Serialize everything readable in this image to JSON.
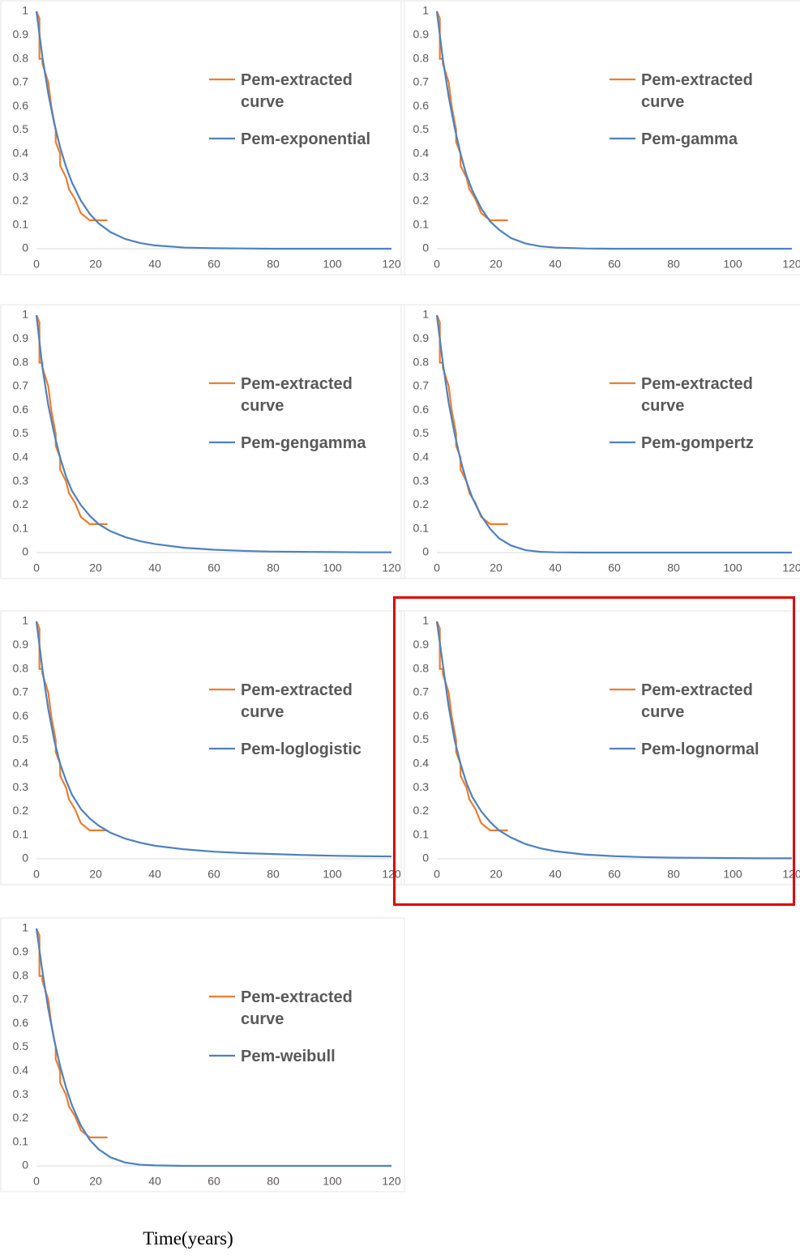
{
  "chart_data": [
    {
      "type": "line",
      "xlim": [
        0,
        120
      ],
      "ylim": [
        0,
        1
      ],
      "xticks": [
        0,
        20,
        40,
        60,
        80,
        100,
        120
      ],
      "yticks": [
        0,
        0.1,
        0.2,
        0.3,
        0.4,
        0.5,
        0.6,
        0.7,
        0.8,
        0.9,
        1
      ],
      "legend": "right",
      "series": [
        {
          "name": "Pem-extracted curve",
          "color": "#ed7d31",
          "x": [
            0,
            1,
            1,
            2,
            2,
            4,
            4,
            5,
            5,
            6.5,
            6.5,
            8,
            8,
            10,
            10,
            11,
            11,
            13,
            13,
            15,
            15,
            18,
            18,
            24
          ],
          "values": [
            1,
            0.97,
            0.8,
            0.8,
            0.78,
            0.7,
            0.7,
            0.6,
            0.6,
            0.5,
            0.45,
            0.4,
            0.35,
            0.3,
            0.3,
            0.25,
            0.25,
            0.21,
            0.21,
            0.15,
            0.15,
            0.12,
            0.12,
            0.12
          ]
        },
        {
          "name": "Pem-exponential",
          "color": "#4f81bd",
          "x": [
            0,
            2,
            4,
            6,
            8,
            10,
            12,
            15,
            18,
            21,
            25,
            30,
            35,
            40,
            50,
            60,
            70,
            80,
            90,
            100,
            110,
            120
          ],
          "values": [
            1,
            0.808,
            0.653,
            0.528,
            0.427,
            0.345,
            0.279,
            0.203,
            0.147,
            0.107,
            0.07,
            0.041,
            0.024,
            0.014,
            0.005,
            0.002,
            0.001,
            0,
            0,
            0,
            0,
            0
          ]
        }
      ]
    },
    {
      "type": "line",
      "xlim": [
        0,
        120
      ],
      "ylim": [
        0,
        1
      ],
      "xticks": [
        0,
        20,
        40,
        60,
        80,
        100,
        120
      ],
      "yticks": [
        0,
        0.1,
        0.2,
        0.3,
        0.4,
        0.5,
        0.6,
        0.7,
        0.8,
        0.9,
        1
      ],
      "legend": "right",
      "series": [
        {
          "name": "Pem-extracted curve",
          "color": "#ed7d31",
          "x": [
            0,
            1,
            1,
            2,
            2,
            4,
            4,
            5,
            5,
            6.5,
            6.5,
            8,
            8,
            10,
            10,
            11,
            11,
            13,
            13,
            15,
            15,
            18,
            18,
            24
          ],
          "values": [
            1,
            0.97,
            0.8,
            0.8,
            0.78,
            0.7,
            0.7,
            0.6,
            0.6,
            0.5,
            0.45,
            0.4,
            0.35,
            0.3,
            0.3,
            0.25,
            0.25,
            0.21,
            0.21,
            0.15,
            0.15,
            0.12,
            0.12,
            0.12
          ]
        },
        {
          "name": "Pem-gamma",
          "color": "#4f81bd",
          "x": [
            0,
            2,
            4,
            6,
            8,
            10,
            12,
            15,
            18,
            21,
            25,
            30,
            35,
            40,
            50,
            60,
            70,
            80,
            90,
            100,
            110,
            120
          ],
          "values": [
            1,
            0.8,
            0.64,
            0.51,
            0.4,
            0.31,
            0.245,
            0.17,
            0.115,
            0.08,
            0.045,
            0.022,
            0.01,
            0.005,
            0.001,
            0,
            0,
            0,
            0,
            0,
            0,
            0
          ]
        }
      ]
    },
    {
      "type": "line",
      "xlim": [
        0,
        120
      ],
      "ylim": [
        0,
        1
      ],
      "xticks": [
        0,
        20,
        40,
        60,
        80,
        100,
        120
      ],
      "yticks": [
        0,
        0.1,
        0.2,
        0.3,
        0.4,
        0.5,
        0.6,
        0.7,
        0.8,
        0.9,
        1
      ],
      "legend": "right",
      "series": [
        {
          "name": "Pem-extracted curve",
          "color": "#ed7d31",
          "x": [
            0,
            1,
            1,
            2,
            2,
            4,
            4,
            5,
            5,
            6.5,
            6.5,
            8,
            8,
            10,
            10,
            11,
            11,
            13,
            13,
            15,
            15,
            18,
            18,
            24
          ],
          "values": [
            1,
            0.97,
            0.8,
            0.8,
            0.78,
            0.7,
            0.7,
            0.6,
            0.6,
            0.5,
            0.45,
            0.4,
            0.35,
            0.3,
            0.3,
            0.25,
            0.25,
            0.21,
            0.21,
            0.15,
            0.15,
            0.12,
            0.12,
            0.12
          ]
        },
        {
          "name": "Pem-gengamma",
          "color": "#4f81bd",
          "x": [
            0,
            2,
            4,
            6,
            8,
            10,
            12,
            15,
            18,
            21,
            25,
            30,
            35,
            40,
            50,
            60,
            70,
            80,
            90,
            100,
            110,
            120
          ],
          "values": [
            1,
            0.78,
            0.62,
            0.5,
            0.4,
            0.32,
            0.26,
            0.2,
            0.155,
            0.12,
            0.09,
            0.065,
            0.048,
            0.036,
            0.02,
            0.012,
            0.007,
            0.004,
            0.003,
            0.002,
            0.001,
            0.001
          ]
        }
      ]
    },
    {
      "type": "line",
      "xlim": [
        0,
        120
      ],
      "ylim": [
        0,
        1
      ],
      "xticks": [
        0,
        20,
        40,
        60,
        80,
        100,
        120
      ],
      "yticks": [
        0,
        0.1,
        0.2,
        0.3,
        0.4,
        0.5,
        0.6,
        0.7,
        0.8,
        0.9,
        1
      ],
      "legend": "right",
      "series": [
        {
          "name": "Pem-extracted curve",
          "color": "#ed7d31",
          "x": [
            0,
            1,
            1,
            2,
            2,
            4,
            4,
            5,
            5,
            6.5,
            6.5,
            8,
            8,
            10,
            10,
            11,
            11,
            13,
            13,
            15,
            15,
            18,
            18,
            24
          ],
          "values": [
            1,
            0.97,
            0.8,
            0.8,
            0.78,
            0.7,
            0.7,
            0.6,
            0.6,
            0.5,
            0.45,
            0.4,
            0.35,
            0.3,
            0.3,
            0.25,
            0.25,
            0.21,
            0.21,
            0.15,
            0.15,
            0.12,
            0.12,
            0.12
          ]
        },
        {
          "name": "Pem-gompertz",
          "color": "#4f81bd",
          "x": [
            0,
            2,
            4,
            6,
            8,
            10,
            12,
            15,
            18,
            21,
            25,
            30,
            35,
            40,
            50,
            60,
            70,
            80,
            90,
            100,
            110,
            120
          ],
          "values": [
            1,
            0.8,
            0.63,
            0.5,
            0.39,
            0.3,
            0.23,
            0.155,
            0.1,
            0.06,
            0.03,
            0.01,
            0.003,
            0.001,
            0,
            0,
            0,
            0,
            0,
            0,
            0,
            0
          ]
        }
      ]
    },
    {
      "type": "line",
      "xlim": [
        0,
        120
      ],
      "ylim": [
        0,
        1
      ],
      "xticks": [
        0,
        20,
        40,
        60,
        80,
        100,
        120
      ],
      "yticks": [
        0,
        0.1,
        0.2,
        0.3,
        0.4,
        0.5,
        0.6,
        0.7,
        0.8,
        0.9,
        1
      ],
      "legend": "right",
      "series": [
        {
          "name": "Pem-extracted curve",
          "color": "#ed7d31",
          "x": [
            0,
            1,
            1,
            2,
            2,
            4,
            4,
            5,
            5,
            6.5,
            6.5,
            8,
            8,
            10,
            10,
            11,
            11,
            13,
            13,
            15,
            15,
            18,
            18,
            24
          ],
          "values": [
            1,
            0.97,
            0.8,
            0.8,
            0.78,
            0.7,
            0.7,
            0.6,
            0.6,
            0.5,
            0.45,
            0.4,
            0.35,
            0.3,
            0.3,
            0.25,
            0.25,
            0.21,
            0.21,
            0.15,
            0.15,
            0.12,
            0.12,
            0.12
          ]
        },
        {
          "name": "Pem-loglogistic",
          "color": "#4f81bd",
          "x": [
            0,
            2,
            4,
            6,
            8,
            10,
            12,
            15,
            18,
            21,
            25,
            30,
            35,
            40,
            50,
            60,
            70,
            80,
            90,
            100,
            110,
            120
          ],
          "values": [
            1,
            0.8,
            0.63,
            0.5,
            0.4,
            0.33,
            0.27,
            0.21,
            0.17,
            0.14,
            0.11,
            0.085,
            0.068,
            0.055,
            0.04,
            0.03,
            0.024,
            0.02,
            0.016,
            0.013,
            0.011,
            0.01
          ]
        }
      ]
    },
    {
      "type": "line",
      "xlim": [
        0,
        120
      ],
      "ylim": [
        0,
        1
      ],
      "xticks": [
        0,
        20,
        40,
        60,
        80,
        100,
        120
      ],
      "yticks": [
        0,
        0.1,
        0.2,
        0.3,
        0.4,
        0.5,
        0.6,
        0.7,
        0.8,
        0.9,
        1
      ],
      "legend": "right",
      "highlight": true,
      "series": [
        {
          "name": "Pem-extracted curve",
          "color": "#ed7d31",
          "x": [
            0,
            1,
            1,
            2,
            2,
            4,
            4,
            5,
            5,
            6.5,
            6.5,
            8,
            8,
            10,
            10,
            11,
            11,
            13,
            13,
            15,
            15,
            18,
            18,
            24
          ],
          "values": [
            1,
            0.97,
            0.8,
            0.8,
            0.78,
            0.7,
            0.7,
            0.6,
            0.6,
            0.5,
            0.45,
            0.4,
            0.35,
            0.3,
            0.3,
            0.25,
            0.25,
            0.21,
            0.21,
            0.15,
            0.15,
            0.12,
            0.12,
            0.12
          ]
        },
        {
          "name": "Pem-lognormal",
          "color": "#4f81bd",
          "x": [
            0,
            2,
            4,
            6,
            8,
            10,
            12,
            15,
            18,
            21,
            25,
            30,
            35,
            40,
            50,
            60,
            70,
            80,
            90,
            100,
            110,
            120
          ],
          "values": [
            1,
            0.82,
            0.64,
            0.5,
            0.4,
            0.32,
            0.26,
            0.2,
            0.155,
            0.12,
            0.09,
            0.062,
            0.044,
            0.032,
            0.018,
            0.011,
            0.007,
            0.005,
            0.004,
            0.003,
            0.002,
            0.002
          ]
        }
      ]
    },
    {
      "type": "line",
      "xlim": [
        0,
        120
      ],
      "ylim": [
        0,
        1
      ],
      "xticks": [
        0,
        20,
        40,
        60,
        80,
        100,
        120
      ],
      "yticks": [
        0,
        0.1,
        0.2,
        0.3,
        0.4,
        0.5,
        0.6,
        0.7,
        0.8,
        0.9,
        1
      ],
      "legend": "right",
      "series": [
        {
          "name": "Pem-extracted curve",
          "color": "#ed7d31",
          "x": [
            0,
            1,
            1,
            2,
            2,
            4,
            4,
            5,
            5,
            6.5,
            6.5,
            8,
            8,
            10,
            10,
            11,
            11,
            13,
            13,
            15,
            15,
            18,
            18,
            24
          ],
          "values": [
            1,
            0.97,
            0.8,
            0.8,
            0.78,
            0.7,
            0.7,
            0.6,
            0.6,
            0.5,
            0.45,
            0.4,
            0.35,
            0.3,
            0.3,
            0.25,
            0.25,
            0.21,
            0.21,
            0.15,
            0.15,
            0.12,
            0.12,
            0.12
          ]
        },
        {
          "name": "Pem-weibull",
          "color": "#4f81bd",
          "x": [
            0,
            2,
            4,
            6,
            8,
            10,
            12,
            15,
            18,
            21,
            25,
            30,
            35,
            40,
            50,
            60,
            70,
            80,
            90,
            100,
            110,
            120
          ],
          "values": [
            1,
            0.82,
            0.66,
            0.53,
            0.42,
            0.33,
            0.255,
            0.17,
            0.11,
            0.07,
            0.036,
            0.014,
            0.005,
            0.002,
            0,
            0,
            0,
            0,
            0,
            0,
            0,
            0
          ]
        }
      ]
    }
  ],
  "x_axis_label": "Time(years)"
}
